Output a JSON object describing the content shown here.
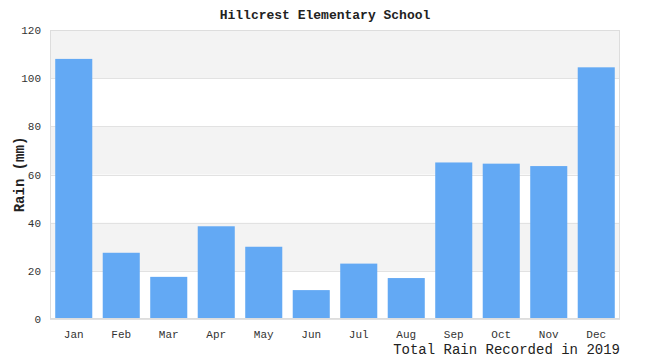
{
  "chart_data": {
    "type": "bar",
    "title": "Hillcrest Elementary School",
    "xlabel": "Total Rain Recorded in 2019",
    "ylabel": "Rain (mm)",
    "categories": [
      "Jan",
      "Feb",
      "Mar",
      "Apr",
      "May",
      "Jun",
      "Jul",
      "Aug",
      "Sep",
      "Oct",
      "Nov",
      "Dec"
    ],
    "values": [
      108,
      27.5,
      17.5,
      38.5,
      30,
      12,
      23,
      17,
      65,
      64.5,
      63.5,
      104.5
    ],
    "color": "#63a9f4",
    "ylim": [
      0,
      120
    ],
    "yticks": [
      0,
      20,
      40,
      60,
      80,
      100,
      120
    ],
    "grid": true
  }
}
